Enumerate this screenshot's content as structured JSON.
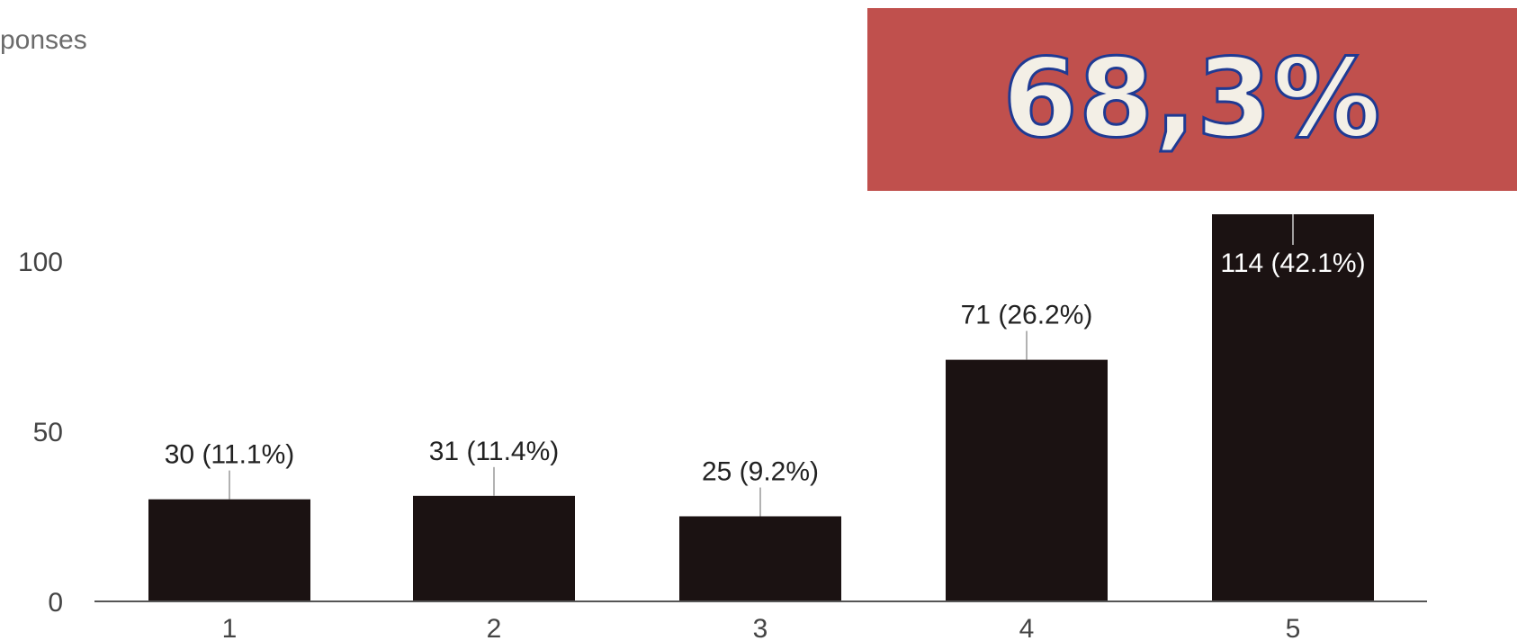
{
  "chart_data": {
    "type": "bar",
    "title": "ponses",
    "categories": [
      "1",
      "2",
      "3",
      "4",
      "5"
    ],
    "values": [
      30,
      31,
      25,
      71,
      114
    ],
    "data_labels": [
      "30 (11.1%)",
      "31 (11.4%)",
      "25 (9.2%)",
      "71 (26.2%)",
      "114 (42.1%)"
    ],
    "yticks": [
      "0",
      "50",
      "100"
    ],
    "ylim": [
      0,
      114
    ],
    "grid": false,
    "bar_color": "#1b1212",
    "axis_color": "#555555",
    "label_color": "#222222"
  },
  "callout": {
    "text": "68,3%",
    "background": "#c0504d",
    "text_color": "#f3efe6",
    "outline_color": "#1f3a93"
  }
}
